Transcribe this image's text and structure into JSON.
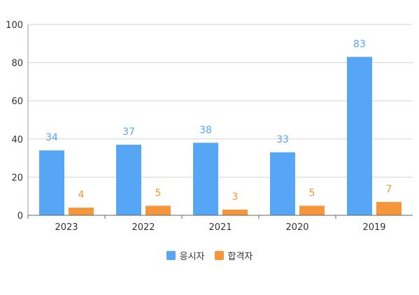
{
  "chart_data": {
    "type": "bar",
    "categories": [
      "2023",
      "2022",
      "2021",
      "2020",
      "2019"
    ],
    "series": [
      {
        "name": "응시자",
        "values": [
          34,
          37,
          38,
          33,
          83
        ],
        "color": "#57a5f5"
      },
      {
        "name": "합격자",
        "values": [
          4,
          5,
          3,
          5,
          7
        ],
        "color": "#f5963a"
      }
    ],
    "title": "",
    "xlabel": "",
    "ylabel": "",
    "ylim": [
      0,
      100
    ],
    "yticks": [
      0,
      20,
      40,
      60,
      80,
      100
    ],
    "grid": true,
    "legend": "bottom",
    "data_labels": true
  }
}
